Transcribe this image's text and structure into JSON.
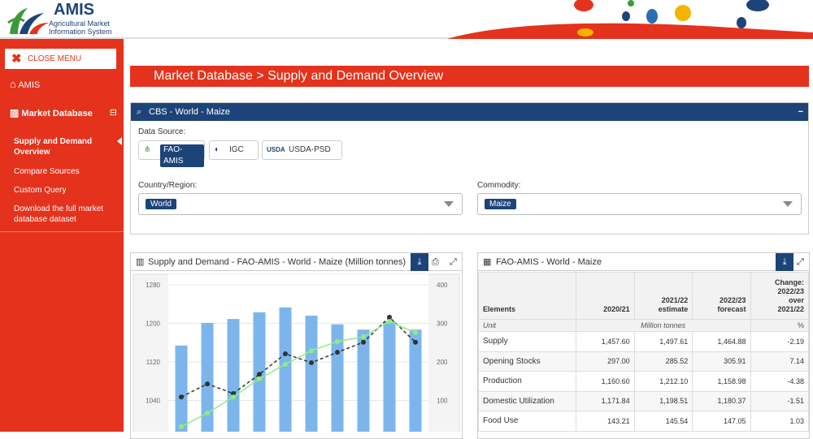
{
  "header": {
    "logo_title": "AMIS",
    "logo_subtitle_1": "Agricultural Market",
    "logo_subtitle_2": "Information System"
  },
  "sidebar": {
    "close": "CLOSE MENU",
    "items": [
      "AMIS",
      "Market Database"
    ],
    "subitems": [
      "Supply and Demand Overview",
      "Compare Sources",
      "Custom Query",
      "Download the full market database dataset"
    ]
  },
  "page_title": "Market Database > Supply and Demand Overview",
  "filter_panel": {
    "title": "CBS - World - Maize",
    "source_label": "Data Source:",
    "sources": [
      "FAO-AMIS",
      "IGC",
      "USDA-PSD"
    ],
    "country_label": "Country/Region:",
    "country": "World",
    "commodity_label": "Commodity:",
    "commodity": "Maize"
  },
  "chart_data": {
    "type": "combo",
    "title": "Supply and Demand - FAO-AMIS - World - Maize (Million tonnes)",
    "categories": [
      null,
      null,
      null,
      null,
      null,
      null,
      null,
      null,
      null,
      null
    ],
    "series": [
      {
        "type": "bar",
        "color": "#7cb5ec",
        "values": [
          1154,
          1201,
          1209,
          1223,
          1233,
          1216,
          1198,
          1187,
          1204,
          1187
        ]
      },
      {
        "type": "line",
        "color": "#333333",
        "axis": "y2",
        "values": [
          109,
          143,
          118,
          168,
          221,
          198,
          225,
          251,
          316,
          251
        ]
      },
      {
        "type": "line",
        "color": "#90ed7d",
        "axis": "y2",
        "values": [
          32,
          67,
          109,
          156,
          194,
          229,
          253,
          265,
          305,
          276
        ]
      }
    ],
    "ylim": [
      960,
      1280
    ],
    "yticks": [
      1040,
      1120,
      1200,
      1280
    ],
    "y2lim": [
      0,
      400
    ],
    "y2ticks": [
      100,
      200,
      300,
      400
    ],
    "grid": true
  },
  "table": {
    "title": "FAO-AMIS - World - Maize",
    "header": [
      "Elements",
      "2020/21",
      "2021/22 estimate",
      "2022/23 forecast",
      "Change: 2022/23 over 2021/22"
    ],
    "unit": [
      "Unit",
      "Million tonnes",
      "%"
    ],
    "rows": [
      [
        "Supply",
        "1,457.60",
        "1,497.61",
        "1,464.88",
        "-2.19"
      ],
      [
        "Opening Stocks",
        "297.00",
        "285.52",
        "305.91",
        "7.14"
      ],
      [
        "Production",
        "1,160.60",
        "1,212.10",
        "1,158.98",
        "-4.38"
      ],
      [
        "Domestic Utilization",
        "1,171.84",
        "1,198.51",
        "1,180.37",
        "-1.51"
      ],
      [
        "Food Use",
        "143.21",
        "145.54",
        "147.05",
        "1.03"
      ]
    ]
  }
}
